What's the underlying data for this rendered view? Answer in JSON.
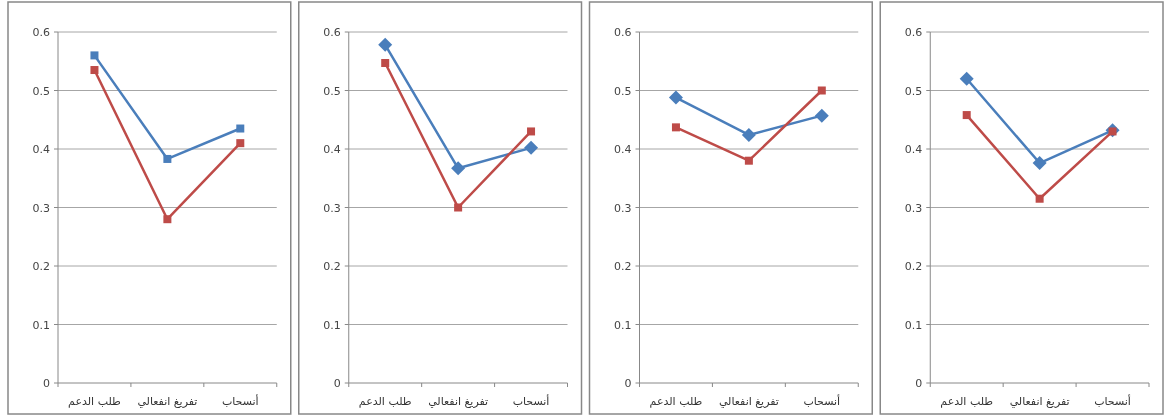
{
  "chart_data": [
    {
      "type": "line",
      "categories": [
        "طلب الدعم",
        "تفريغ انفعالي",
        "أنسحاب"
      ],
      "ylim": [
        0,
        0.6
      ],
      "yticks": [
        0,
        0.1,
        0.2,
        0.3,
        0.4,
        0.5,
        0.6
      ],
      "grid": "y",
      "series": [
        {
          "color": "#4a7ebb",
          "marker": "square",
          "values": [
            0.56,
            0.383,
            0.435
          ]
        },
        {
          "color": "#be4b48",
          "marker": "square",
          "values": [
            0.535,
            0.28,
            0.41
          ]
        }
      ]
    },
    {
      "type": "line",
      "categories": [
        "طلب الدعم",
        "تفريغ انفعالي",
        "أنسحاب"
      ],
      "ylim": [
        0,
        0.6
      ],
      "yticks": [
        0,
        0.1,
        0.2,
        0.3,
        0.4,
        0.5,
        0.6
      ],
      "grid": "y",
      "series": [
        {
          "color": "#4a7ebb",
          "marker": "diamond",
          "values": [
            0.578,
            0.367,
            0.402
          ]
        },
        {
          "color": "#be4b48",
          "marker": "square",
          "values": [
            0.547,
            0.3,
            0.43
          ]
        }
      ]
    },
    {
      "type": "line",
      "categories": [
        "طلب الدعم",
        "تفريغ انفعالي",
        "أنسحاب"
      ],
      "ylim": [
        0,
        0.6
      ],
      "yticks": [
        0,
        0.1,
        0.2,
        0.3,
        0.4,
        0.5,
        0.6
      ],
      "grid": "y",
      "series": [
        {
          "color": "#4a7ebb",
          "marker": "diamond",
          "values": [
            0.488,
            0.424,
            0.457
          ]
        },
        {
          "color": "#be4b48",
          "marker": "square",
          "values": [
            0.437,
            0.38,
            0.5
          ]
        }
      ]
    },
    {
      "type": "line",
      "categories": [
        "طلب الدعم",
        "تفريغ انفعالي",
        "أنسحاب"
      ],
      "ylim": [
        0,
        0.6
      ],
      "yticks": [
        0,
        0.1,
        0.2,
        0.3,
        0.4,
        0.5,
        0.6
      ],
      "grid": "y",
      "series": [
        {
          "color": "#4a7ebb",
          "marker": "diamond",
          "values": [
            0.52,
            0.376,
            0.432
          ]
        },
        {
          "color": "#be4b48",
          "marker": "square",
          "values": [
            0.458,
            0.315,
            0.43
          ]
        }
      ]
    }
  ]
}
